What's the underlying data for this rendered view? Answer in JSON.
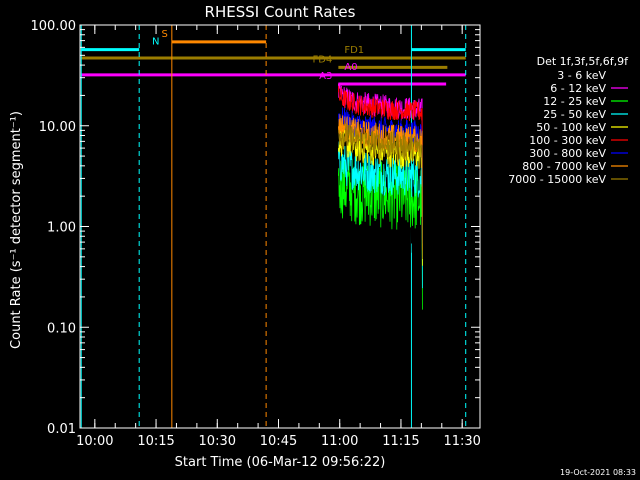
{
  "chart_data": {
    "type": "line",
    "title": "RHESSI Count Rates",
    "xlabel": "Start Time (06-Mar-12 09:56:22)",
    "ylabel": "Count Rate (s⁻¹ detector segment⁻¹)",
    "y_scale": "log",
    "ylim": [
      0.01,
      100.0
    ],
    "xlim_minutes_from_start": [
      0,
      38
    ],
    "x_tick_labels": [
      "10:00",
      "10:15",
      "10:30",
      "10:45",
      "11:00",
      "11:15",
      "11:30"
    ],
    "x_tick_minutes": [
      3.633,
      18.633,
      33.633,
      48.633,
      63.633,
      78.633,
      93.633
    ],
    "y_tick_labels": [
      "0.01",
      "0.10",
      "1.00",
      "10.00",
      "100.00"
    ],
    "y_tick_values": [
      0.01,
      0.1,
      1.0,
      10.0,
      100.0
    ],
    "legend_title": "Det 1f,3f,5f,6f,9f",
    "legend_position": "right",
    "series": [
      {
        "name": "3 - 6 keV",
        "color": "#000000",
        "level": 1.6,
        "noise": 0.45
      },
      {
        "name": "6 - 12 keV",
        "color": "#ff00ff",
        "level": 17.0,
        "noise": 0.12
      },
      {
        "name": "12 - 25 keV",
        "color": "#00ff00",
        "level": 2.2,
        "noise": 0.35
      },
      {
        "name": "25 - 50 keV",
        "color": "#00ffff",
        "level": 3.6,
        "noise": 0.22
      },
      {
        "name": "50 - 100 keV",
        "color": "#ffff00",
        "level": 6.0,
        "noise": 0.16
      },
      {
        "name": "100 - 300 keV",
        "color": "#ff0000",
        "level": 16.0,
        "noise": 0.11
      },
      {
        "name": "300 - 800 keV",
        "color": "#0000ff",
        "level": 10.0,
        "noise": 0.13
      },
      {
        "name": "800 - 7000 keV",
        "color": "#ff8c00",
        "level": 8.5,
        "noise": 0.14
      },
      {
        "name": "7000 - 15000 keV",
        "color": "#9b7d00",
        "level": 7.0,
        "noise": 0.15
      }
    ],
    "data_interval_minutes": [
      63.3,
      83.9
    ],
    "flag_bars": [
      {
        "label": "N",
        "color": "#00ffff",
        "value": 57,
        "segments_minutes": [
          [
            0.3,
            14.5
          ],
          [
            81.2,
            94.5
          ]
        ]
      },
      {
        "label": "S",
        "color": "#ff8800",
        "value": 68,
        "segments_minutes": [
          [
            22.5,
            45.6
          ]
        ]
      },
      {
        "label": "FD1",
        "color": "#9b7d00",
        "value": 47,
        "segments_minutes": [
          [
            0.3,
            94.5
          ]
        ]
      },
      {
        "label": "FD4",
        "color": "#9b7d00",
        "value": 38,
        "segments_minutes": [
          [
            63.3,
            90.0
          ]
        ]
      },
      {
        "label": "A0",
        "color": "#ff00ff",
        "value": 32,
        "segments_minutes": [
          [
            0.3,
            94.5
          ]
        ]
      },
      {
        "label": "A3",
        "color": "#ff00ff",
        "value": 26,
        "segments_minutes": [
          [
            63.3,
            89.7
          ]
        ]
      }
    ],
    "vertical_lines": [
      {
        "color": "#00ffff",
        "style": "solid",
        "minute": 0.3
      },
      {
        "color": "#00ffff",
        "style": "dashed",
        "minute": 14.5
      },
      {
        "color": "#ff8800",
        "style": "solid",
        "minute": 22.5
      },
      {
        "color": "#ff8800",
        "style": "dashed",
        "minute": 45.6
      },
      {
        "color": "#00ffff",
        "style": "solid",
        "minute": 81.2
      },
      {
        "color": "#00ffff",
        "style": "dashed",
        "minute": 94.5
      }
    ],
    "footer_date": "19-Oct-2021 08:33"
  }
}
